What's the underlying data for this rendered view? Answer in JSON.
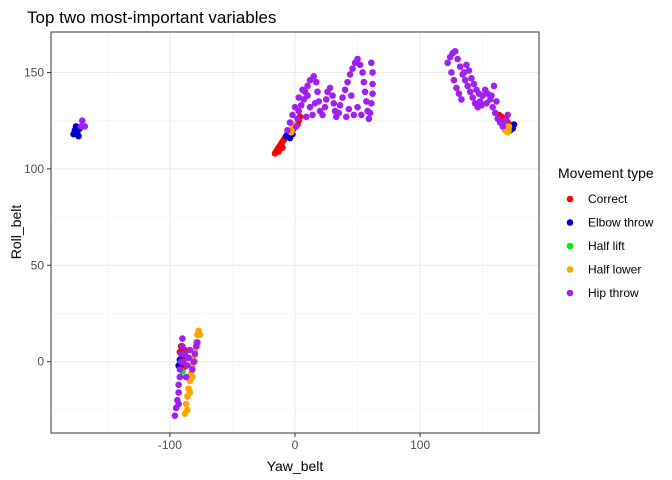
{
  "chart_data": {
    "type": "scatter",
    "title": "Top two most-important variables",
    "xlabel": "Yaw_belt",
    "ylabel": "Roll_belt",
    "xlim": [
      -195,
      195
    ],
    "ylim": [
      -37,
      171
    ],
    "x_ticks": [
      -100,
      0,
      100
    ],
    "y_ticks": [
      0,
      50,
      100,
      150
    ],
    "grid": true,
    "legend": {
      "title": "Movement type",
      "position": "right"
    },
    "series": [
      {
        "name": "Correct",
        "color": "#ff0000",
        "points": [
          [
            -16,
            108
          ],
          [
            -15,
            109
          ],
          [
            -14,
            110
          ],
          [
            -13,
            111
          ],
          [
            -12,
            112
          ],
          [
            -11,
            113
          ],
          [
            -10,
            114
          ],
          [
            -9,
            115
          ],
          [
            -8,
            116
          ],
          [
            -13,
            109
          ],
          [
            -10,
            111
          ],
          [
            2,
            123
          ],
          [
            3,
            125
          ],
          [
            4,
            127
          ],
          [
            163,
            128
          ],
          [
            165,
            127
          ],
          [
            167,
            126
          ],
          [
            169,
            125
          ],
          [
            170,
            124
          ],
          [
            171,
            123
          ],
          [
            -92,
            5
          ],
          [
            -91,
            8
          ],
          [
            -90,
            2
          ],
          [
            -89,
            -3
          ],
          [
            -88,
            6
          ]
        ]
      },
      {
        "name": "Elbow throw",
        "color": "#0000cd",
        "points": [
          [
            -177,
            118
          ],
          [
            -176,
            120
          ],
          [
            -175,
            122
          ],
          [
            -174,
            119
          ],
          [
            -173,
            117
          ],
          [
            -172,
            121
          ],
          [
            -7,
            117
          ],
          [
            -6,
            118
          ],
          [
            -5,
            119
          ],
          [
            -4,
            116
          ],
          [
            -3,
            120
          ],
          [
            -2,
            118
          ],
          [
            -1,
            121
          ],
          [
            173,
            122
          ],
          [
            174,
            121
          ],
          [
            175,
            123
          ],
          [
            172,
            120
          ],
          [
            -93,
            -2
          ],
          [
            -92,
            1
          ]
        ]
      },
      {
        "name": "Half lift",
        "color": "#00ee00",
        "points": [
          [
            170,
            121
          ],
          [
            171,
            120
          ],
          [
            169,
            122
          ],
          [
            -90,
            -5
          ]
        ]
      },
      {
        "name": "Half lower",
        "color": "#ffa500",
        "points": [
          [
            -88,
            -27
          ],
          [
            -87,
            -22
          ],
          [
            -86,
            -18
          ],
          [
            -85,
            -14
          ],
          [
            -84,
            -10
          ],
          [
            -83,
            -6
          ],
          [
            -82,
            -2
          ],
          [
            -81,
            2
          ],
          [
            -80,
            6
          ],
          [
            -79,
            10
          ],
          [
            -78,
            14
          ],
          [
            -77,
            16
          ],
          [
            -86,
            -25
          ],
          [
            -84,
            -16
          ],
          [
            -82,
            -8
          ],
          [
            -80,
            0
          ],
          [
            -78,
            8
          ],
          [
            -76,
            14
          ],
          [
            -3,
            119
          ],
          [
            -2,
            121
          ],
          [
            -1,
            123
          ],
          [
            168,
            120
          ],
          [
            170,
            119
          ],
          [
            171,
            122
          ],
          [
            166,
            124
          ]
        ]
      },
      {
        "name": "Hip throw",
        "color": "#a020f0",
        "points": [
          [
            -96,
            -28
          ],
          [
            -95,
            -24
          ],
          [
            -94,
            -20
          ],
          [
            -93,
            -16
          ],
          [
            -93,
            -12
          ],
          [
            -92,
            -8
          ],
          [
            -92,
            -4
          ],
          [
            -91,
            0
          ],
          [
            -91,
            4
          ],
          [
            -90,
            8
          ],
          [
            -90,
            12
          ],
          [
            -89,
            0
          ],
          [
            -88,
            4
          ],
          [
            -87,
            -8
          ],
          [
            -86,
            -2
          ],
          [
            -85,
            2
          ],
          [
            -84,
            6
          ],
          [
            -82,
            -4
          ],
          [
            -81,
            0
          ],
          [
            -80,
            4
          ],
          [
            -79,
            8
          ],
          [
            -78,
            10
          ],
          [
            -93,
            -22
          ],
          [
            -171,
            122
          ],
          [
            -170,
            125
          ],
          [
            -168,
            122
          ],
          [
            1,
            122
          ],
          [
            2,
            126
          ],
          [
            3,
            130
          ],
          [
            5,
            133
          ],
          [
            7,
            136
          ],
          [
            8,
            140
          ],
          [
            10,
            143
          ],
          [
            12,
            146
          ],
          [
            15,
            148
          ],
          [
            17,
            145
          ],
          [
            18,
            140
          ],
          [
            19,
            135
          ],
          [
            20,
            130
          ],
          [
            22,
            128
          ],
          [
            24,
            132
          ],
          [
            25,
            136
          ],
          [
            26,
            140
          ],
          [
            28,
            142
          ],
          [
            30,
            138
          ],
          [
            31,
            134
          ],
          [
            32,
            130
          ],
          [
            33,
            127
          ],
          [
            35,
            129
          ],
          [
            36,
            133
          ],
          [
            38,
            137
          ],
          [
            40,
            141
          ],
          [
            42,
            145
          ],
          [
            44,
            149
          ],
          [
            46,
            152
          ],
          [
            48,
            155
          ],
          [
            50,
            157
          ],
          [
            52,
            154
          ],
          [
            54,
            150
          ],
          [
            55,
            145
          ],
          [
            56,
            140
          ],
          [
            57,
            135
          ],
          [
            58,
            130
          ],
          [
            59,
            126
          ],
          [
            60,
            129
          ],
          [
            61,
            134
          ],
          [
            62,
            139
          ],
          [
            62,
            144
          ],
          [
            62,
            150
          ],
          [
            61,
            155
          ],
          [
            45,
            138
          ],
          [
            47,
            128
          ],
          [
            50,
            132
          ],
          [
            53,
            128
          ],
          [
            41,
            127
          ],
          [
            43,
            131
          ],
          [
            -4,
            124
          ],
          [
            -2,
            128
          ],
          [
            0,
            132
          ],
          [
            3,
            137
          ],
          [
            6,
            141
          ],
          [
            10,
            138
          ],
          [
            12,
            132
          ],
          [
            14,
            128
          ],
          [
            16,
            134
          ],
          [
            9,
            127
          ],
          [
            -6,
            120
          ],
          [
            122,
            155
          ],
          [
            124,
            158
          ],
          [
            126,
            160
          ],
          [
            128,
            161
          ],
          [
            130,
            157
          ],
          [
            132,
            153
          ],
          [
            134,
            149
          ],
          [
            136,
            146
          ],
          [
            138,
            143
          ],
          [
            140,
            140
          ],
          [
            142,
            137
          ],
          [
            144,
            134
          ],
          [
            146,
            132
          ],
          [
            148,
            135
          ],
          [
            150,
            138
          ],
          [
            152,
            141
          ],
          [
            154,
            139
          ],
          [
            156,
            136
          ],
          [
            158,
            132
          ],
          [
            160,
            129
          ],
          [
            162,
            126
          ],
          [
            164,
            124
          ],
          [
            166,
            122
          ],
          [
            168,
            125
          ],
          [
            170,
            128
          ],
          [
            125,
            150
          ],
          [
            127,
            146
          ],
          [
            129,
            142
          ],
          [
            131,
            139
          ],
          [
            133,
            136
          ],
          [
            135,
            150
          ],
          [
            137,
            154
          ],
          [
            139,
            151
          ],
          [
            141,
            147
          ],
          [
            143,
            144
          ],
          [
            145,
            141
          ],
          [
            147,
            139
          ],
          [
            149,
            133
          ],
          [
            153,
            134
          ],
          [
            157,
            138
          ],
          [
            159,
            143
          ],
          [
            161,
            135
          ]
        ]
      }
    ]
  }
}
